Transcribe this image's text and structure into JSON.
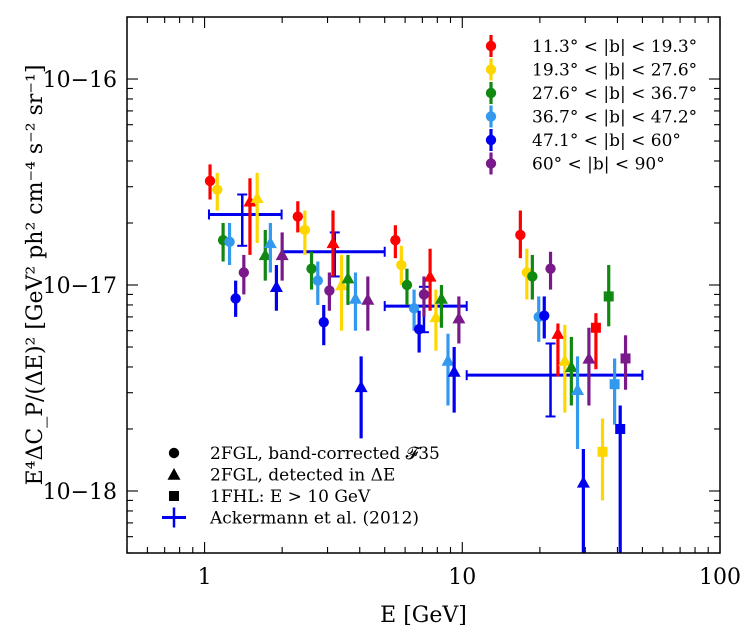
{
  "chart_data": {
    "type": "scatter",
    "xscale": "log",
    "yscale": "log",
    "xlim": [
      0.5,
      100
    ],
    "ylim": [
      5e-19,
      2e-16
    ],
    "xlabel": "E [GeV]",
    "ylabel": "E⁴ΔC_P/(ΔE)² [GeV² ph² cm⁻⁴ s⁻² sr⁻¹]",
    "x_ticks": [
      {
        "value": 1,
        "label": "1"
      },
      {
        "value": 10,
        "label": "10"
      },
      {
        "value": 100,
        "label": "100"
      }
    ],
    "y_ticks": [
      {
        "value": 1e-18,
        "label": "10−18"
      },
      {
        "value": 1e-17,
        "label": "10−17"
      },
      {
        "value": 1e-16,
        "label": "10−16"
      }
    ],
    "marker_legend": [
      {
        "marker": "circle",
        "label": "2FGL, band-corrected 𝓕35"
      },
      {
        "marker": "triangle",
        "label": "2FGL, detected in ΔE"
      },
      {
        "marker": "square",
        "label": "1FHL: E > 10 GeV"
      },
      {
        "marker": "errorbar",
        "label": "Ackermann et al. (2012)"
      }
    ],
    "series": [
      {
        "name": "11.3° < |b| < 19.3°",
        "color": "#ff0000",
        "points": [
          {
            "m": "circle",
            "x": 1.05,
            "y": 3.2e-17,
            "lo": 2.6e-17,
            "hi": 3.85e-17
          },
          {
            "m": "triangle",
            "x": 1.5,
            "y": 2.55e-17,
            "lo": 1.4e-17,
            "hi": 3.3e-17
          },
          {
            "m": "circle",
            "x": 2.3,
            "y": 2.15e-17,
            "lo": 1.8e-17,
            "hi": 2.55e-17
          },
          {
            "m": "triangle",
            "x": 3.15,
            "y": 1.6e-17,
            "lo": 1.1e-17,
            "hi": 2.3e-17
          },
          {
            "m": "circle",
            "x": 5.5,
            "y": 1.65e-17,
            "lo": 1.35e-17,
            "hi": 1.95e-17
          },
          {
            "m": "triangle",
            "x": 7.5,
            "y": 1.1e-17,
            "lo": 7.5e-18,
            "hi": 1.5e-17
          },
          {
            "m": "circle",
            "x": 16.8,
            "y": 1.75e-17,
            "lo": 1.35e-17,
            "hi": 2.3e-17
          },
          {
            "m": "triangle",
            "x": 23.5,
            "y": 5.8e-18,
            "lo": 3.6e-18,
            "hi": 6.5e-18
          },
          {
            "m": "square",
            "x": 33,
            "y": 6.2e-18,
            "lo": 3.9e-18,
            "hi": 7.3e-18
          }
        ]
      },
      {
        "name": "19.3° < |b| < 27.6°",
        "color": "#ffd700",
        "points": [
          {
            "m": "circle",
            "x": 1.12,
            "y": 2.9e-17,
            "lo": 2.3e-17,
            "hi": 3.5e-17
          },
          {
            "m": "triangle",
            "x": 1.6,
            "y": 2.65e-17,
            "lo": 1.6e-17,
            "hi": 3.5e-17
          },
          {
            "m": "circle",
            "x": 2.45,
            "y": 1.85e-17,
            "lo": 1.4e-17,
            "hi": 2.3e-17
          },
          {
            "m": "triangle",
            "x": 3.4,
            "y": 1e-17,
            "lo": 6e-18,
            "hi": 1.4e-17
          },
          {
            "m": "circle",
            "x": 5.8,
            "y": 1.25e-17,
            "lo": 1e-17,
            "hi": 1.55e-17
          },
          {
            "m": "triangle",
            "x": 7.9,
            "y": 7e-18,
            "lo": 4.8e-18,
            "hi": 9.5e-18
          },
          {
            "m": "circle",
            "x": 17.8,
            "y": 1.15e-17,
            "lo": 8.5e-18,
            "hi": 1.5e-17
          },
          {
            "m": "triangle",
            "x": 25,
            "y": 4.3e-18,
            "lo": 2.4e-18,
            "hi": 6.4e-18
          },
          {
            "m": "square",
            "x": 35,
            "y": 1.55e-18,
            "lo": 9e-19,
            "hi": 2.25e-18
          }
        ]
      },
      {
        "name": "27.6° < |b| < 36.7°",
        "color": "#118811",
        "points": [
          {
            "m": "circle",
            "x": 1.18,
            "y": 1.65e-17,
            "lo": 1.3e-17,
            "hi": 2e-17
          },
          {
            "m": "triangle",
            "x": 1.72,
            "y": 1.4e-17,
            "lo": 1.05e-17,
            "hi": 1.85e-17
          },
          {
            "m": "circle",
            "x": 2.6,
            "y": 1.2e-17,
            "lo": 9.5e-18,
            "hi": 1.45e-17
          },
          {
            "m": "triangle",
            "x": 3.6,
            "y": 1.08e-17,
            "lo": 8e-18,
            "hi": 1.4e-17
          },
          {
            "m": "circle",
            "x": 6.1,
            "y": 1e-17,
            "lo": 8e-18,
            "hi": 1.2e-17
          },
          {
            "m": "triangle",
            "x": 8.3,
            "y": 8.6e-18,
            "lo": 6.2e-18,
            "hi": 1e-17
          },
          {
            "m": "circle",
            "x": 18.7,
            "y": 1.1e-17,
            "lo": 8.5e-18,
            "hi": 1.4e-17
          },
          {
            "m": "triangle",
            "x": 26.5,
            "y": 4e-18,
            "lo": 2.6e-18,
            "hi": 5.6e-18
          },
          {
            "m": "square",
            "x": 37,
            "y": 8.8e-18,
            "lo": 6.3e-18,
            "hi": 1.25e-17
          }
        ]
      },
      {
        "name": "36.7° < |b| < 47.2°",
        "color": "#3399ee",
        "points": [
          {
            "m": "circle",
            "x": 1.25,
            "y": 1.62e-17,
            "lo": 1.25e-17,
            "hi": 2e-17
          },
          {
            "m": "triangle",
            "x": 1.8,
            "y": 1.6e-17,
            "lo": 1.15e-17,
            "hi": 2e-17
          },
          {
            "m": "circle",
            "x": 2.75,
            "y": 1.05e-17,
            "lo": 8e-18,
            "hi": 1.3e-17
          },
          {
            "m": "triangle",
            "x": 3.85,
            "y": 8.6e-18,
            "lo": 6e-18,
            "hi": 1.15e-17
          },
          {
            "m": "circle",
            "x": 6.5,
            "y": 7.7e-18,
            "lo": 6e-18,
            "hi": 9.5e-18
          },
          {
            "m": "triangle",
            "x": 8.8,
            "y": 4.3e-18,
            "lo": 2.6e-18,
            "hi": 5.8e-18
          },
          {
            "m": "circle",
            "x": 19.8,
            "y": 7e-18,
            "lo": 5.3e-18,
            "hi": 8.8e-18
          },
          {
            "m": "triangle",
            "x": 28,
            "y": 3.1e-18,
            "lo": 1.6e-18,
            "hi": 4.5e-18
          },
          {
            "m": "square",
            "x": 39,
            "y": 3.3e-18,
            "lo": 2.1e-18,
            "hi": 4.4e-18
          }
        ]
      },
      {
        "name": "47.1° < |b| < 60°",
        "color": "#0000ee",
        "points": [
          {
            "m": "circle",
            "x": 1.32,
            "y": 8.6e-18,
            "lo": 7e-18,
            "hi": 1.05e-17
          },
          {
            "m": "triangle",
            "x": 1.9,
            "y": 9.8e-18,
            "lo": 7.5e-18,
            "hi": 1.25e-17
          },
          {
            "m": "circle",
            "x": 2.9,
            "y": 6.6e-18,
            "lo": 5.1e-18,
            "hi": 8e-18
          },
          {
            "m": "triangle",
            "x": 4.05,
            "y": 3.2e-18,
            "lo": 1.8e-18,
            "hi": 4.5e-18
          },
          {
            "m": "circle",
            "x": 6.8,
            "y": 6.1e-18,
            "lo": 4.7e-18,
            "hi": 7.5e-18
          },
          {
            "m": "triangle",
            "x": 9.3,
            "y": 3.8e-18,
            "lo": 2.4e-18,
            "hi": 5e-18
          },
          {
            "m": "circle",
            "x": 20.8,
            "y": 7.1e-18,
            "lo": 5.5e-18,
            "hi": 8.8e-18
          },
          {
            "m": "triangle",
            "x": 29.5,
            "y": 1.1e-18,
            "lo": 5e-19,
            "hi": 1.6e-18
          },
          {
            "m": "square",
            "x": 41,
            "y": 2e-18,
            "lo": 5e-19,
            "hi": 2.6e-18
          }
        ]
      },
      {
        "name": "60°  < |b| < 90°",
        "color": "#7a1a8a",
        "points": [
          {
            "m": "circle",
            "x": 1.42,
            "y": 1.15e-17,
            "lo": 9e-18,
            "hi": 1.4e-17
          },
          {
            "m": "triangle",
            "x": 2.0,
            "y": 1.4e-17,
            "lo": 1.05e-17,
            "hi": 1.8e-17
          },
          {
            "m": "circle",
            "x": 3.05,
            "y": 9.4e-18,
            "lo": 7.5e-18,
            "hi": 1.15e-17
          },
          {
            "m": "triangle",
            "x": 4.3,
            "y": 8.5e-18,
            "lo": 6e-18,
            "hi": 1.1e-17
          },
          {
            "m": "circle",
            "x": 7.1,
            "y": 9e-18,
            "lo": 7e-18,
            "hi": 1.1e-17
          },
          {
            "m": "triangle",
            "x": 9.7,
            "y": 6.9e-18,
            "lo": 5.2e-18,
            "hi": 8.8e-18
          },
          {
            "m": "circle",
            "x": 22,
            "y": 1.2e-17,
            "lo": 9.5e-18,
            "hi": 1.45e-17
          },
          {
            "m": "triangle",
            "x": 31,
            "y": 4.4e-18,
            "lo": 2.6e-18,
            "hi": 6.2e-18
          },
          {
            "m": "square",
            "x": 43,
            "y": 4.4e-18,
            "lo": 3.1e-18,
            "hi": 5.7e-18
          }
        ]
      }
    ],
    "reference": {
      "name": "Ackermann et al. (2012)",
      "color": "#0000ee",
      "points": [
        {
          "x": 1.4,
          "xlo": 1.04,
          "xhi": 1.99,
          "y": 2.2e-17,
          "lo": 1.55e-17,
          "hi": 2.75e-17
        },
        {
          "x": 3.2,
          "xlo": 2.0,
          "xhi": 5.0,
          "y": 1.45e-17,
          "lo": 1.1e-17,
          "hi": 1.8e-17
        },
        {
          "x": 7.1,
          "xlo": 5.0,
          "xhi": 10.4,
          "y": 7.9e-18,
          "lo": 5.9e-18,
          "hi": 9.8e-18
        },
        {
          "x": 22,
          "xlo": 10.4,
          "xhi": 50,
          "y": 3.65e-18,
          "lo": 2.3e-18,
          "hi": 5.2e-18
        }
      ]
    }
  }
}
